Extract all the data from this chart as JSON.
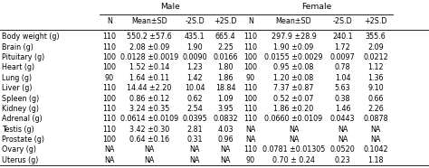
{
  "title_male": "Male",
  "title_female": "Female",
  "col_headers": [
    "N",
    "Mean±SD",
    "-2S.D",
    "+2S.D",
    "N",
    "Mean±SD",
    "-2S.D",
    "+2S.D"
  ],
  "row_labels": [
    "Body weight (g)",
    "Brain (g)",
    "Pituitary (g)",
    "Heart (g)",
    "Lung (g)",
    "Liver (g)",
    "Spleen (g)",
    "Kidney (g)",
    "Adrenal (g)",
    "Testis (g)",
    "Prostate (g)",
    "Ovary (g)",
    "Uterus (g)"
  ],
  "col_N_male": [
    "110",
    "110",
    "100",
    "100",
    "90",
    "110",
    "100",
    "110",
    "110",
    "110",
    "100",
    "NA",
    "NA"
  ],
  "col_mean_male": [
    "550.2 ±57.6",
    "2.08 ±0.09",
    "0.0128 ±0.0019",
    "1.52 ±0.14",
    "1.64 ±0.11",
    "14.44 ±2.20",
    "0.86 ±0.12",
    "3.24 ±0.35",
    "0.0614 ±0.0109",
    "3.42 ±0.30",
    "0.64 ±0.16",
    "NA",
    "NA"
  ],
  "col_2sd_male": [
    "435.1",
    "1.90",
    "0.0090",
    "1.23",
    "1.42",
    "10.04",
    "0.62",
    "2.54",
    "0.0395",
    "2.81",
    "0.31",
    "NA",
    "NA"
  ],
  "col_p2sd_male": [
    "665.4",
    "2.25",
    "0.0166",
    "1.80",
    "1.86",
    "18.84",
    "1.09",
    "3.95",
    "0.0832",
    "4.03",
    "0.96",
    "NA",
    "NA"
  ],
  "col_N_fem": [
    "110",
    "110",
    "100",
    "100",
    "90",
    "110",
    "100",
    "110",
    "110",
    "NA",
    "NA",
    "110",
    "90"
  ],
  "col_mean_fem": [
    "297.9 ±28.9",
    "1.90 ±0.09",
    "0.0155 ±0.0029",
    "0.95 ±0.08",
    "1.20 ±0.08",
    "7.37 ±0.87",
    "0.52 ±0.07",
    "1.86 ±0.20",
    "0.0660 ±0.0109",
    "NA",
    "NA",
    "0.0781 ±0.01305",
    "0.70 ± 0.24"
  ],
  "col_2sd_fem": [
    "240.1",
    "1.72",
    "0.0097",
    "0.78",
    "1.04",
    "5.63",
    "0.38",
    "1.46",
    "0.0443",
    "NA",
    "NA",
    "0.0520",
    "0.23"
  ],
  "col_p2sd_fem": [
    "355.6",
    "2.09",
    "0.0212",
    "1.12",
    "1.36",
    "9.10",
    "0.66",
    "2.26",
    "0.0878",
    "NA",
    "NA",
    "0.1042",
    "1.18"
  ],
  "bg_color": "#ffffff",
  "line_color": "#000000",
  "text_color": "#000000",
  "font_size": 5.8
}
